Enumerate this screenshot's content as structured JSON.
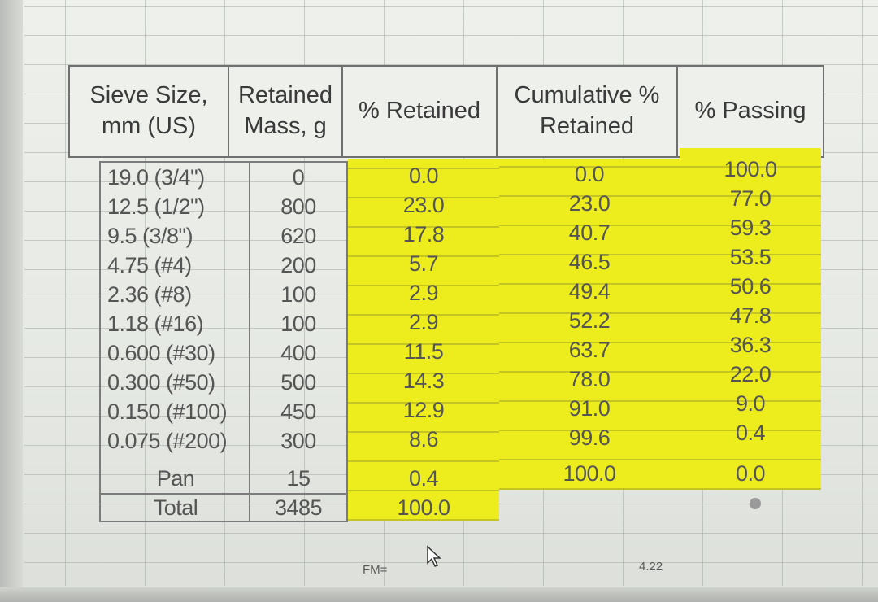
{
  "headers": {
    "sieve": [
      "Sieve Size,",
      "mm (US)"
    ],
    "retained_mass": [
      "Retained",
      "Mass, g"
    ],
    "pct_retained": "% Retained",
    "cum_retained": [
      "Cumulative %",
      "Retained"
    ],
    "pct_passing": "% Passing"
  },
  "rows": [
    {
      "sieve": "19.0 (3/4\")",
      "mass": "0",
      "pct": "0.0",
      "cum": "0.0",
      "pass": "100.0"
    },
    {
      "sieve": "12.5 (1/2\")",
      "mass": "800",
      "pct": "23.0",
      "cum": "23.0",
      "pass": "77.0"
    },
    {
      "sieve": "9.5 (3/8\")",
      "mass": "620",
      "pct": "17.8",
      "cum": "40.7",
      "pass": "59.3"
    },
    {
      "sieve": "4.75 (#4)",
      "mass": "200",
      "pct": "5.7",
      "cum": "46.5",
      "pass": "53.5"
    },
    {
      "sieve": "2.36 (#8)",
      "mass": "100",
      "pct": "2.9",
      "cum": "49.4",
      "pass": "50.6"
    },
    {
      "sieve": "1.18 (#16)",
      "mass": "100",
      "pct": "2.9",
      "cum": "52.2",
      "pass": "47.8"
    },
    {
      "sieve": "0.600 (#30)",
      "mass": "400",
      "pct": "11.5",
      "cum": "63.7",
      "pass": "36.3"
    },
    {
      "sieve": "0.300 (#50)",
      "mass": "500",
      "pct": "14.3",
      "cum": "78.0",
      "pass": "22.0"
    },
    {
      "sieve": "0.150 (#100)",
      "mass": "450",
      "pct": "12.9",
      "cum": "91.0",
      "pass": "9.0"
    },
    {
      "sieve": "0.075 (#200)",
      "mass": "300",
      "pct": "8.6",
      "cum": "99.6",
      "pass": "0.4"
    },
    {
      "sieve": "Pan",
      "mass": "15",
      "pct": "0.4",
      "cum": "100.0",
      "pass": "0.0"
    },
    {
      "sieve": "Total",
      "mass": "3485",
      "pct": "100.0",
      "cum": "",
      "pass": ""
    }
  ],
  "footer": {
    "fm_label": "FM=",
    "fm_value": "4.22"
  },
  "colors": {
    "highlight": "#eded1e",
    "border": "#6f6f6f"
  }
}
